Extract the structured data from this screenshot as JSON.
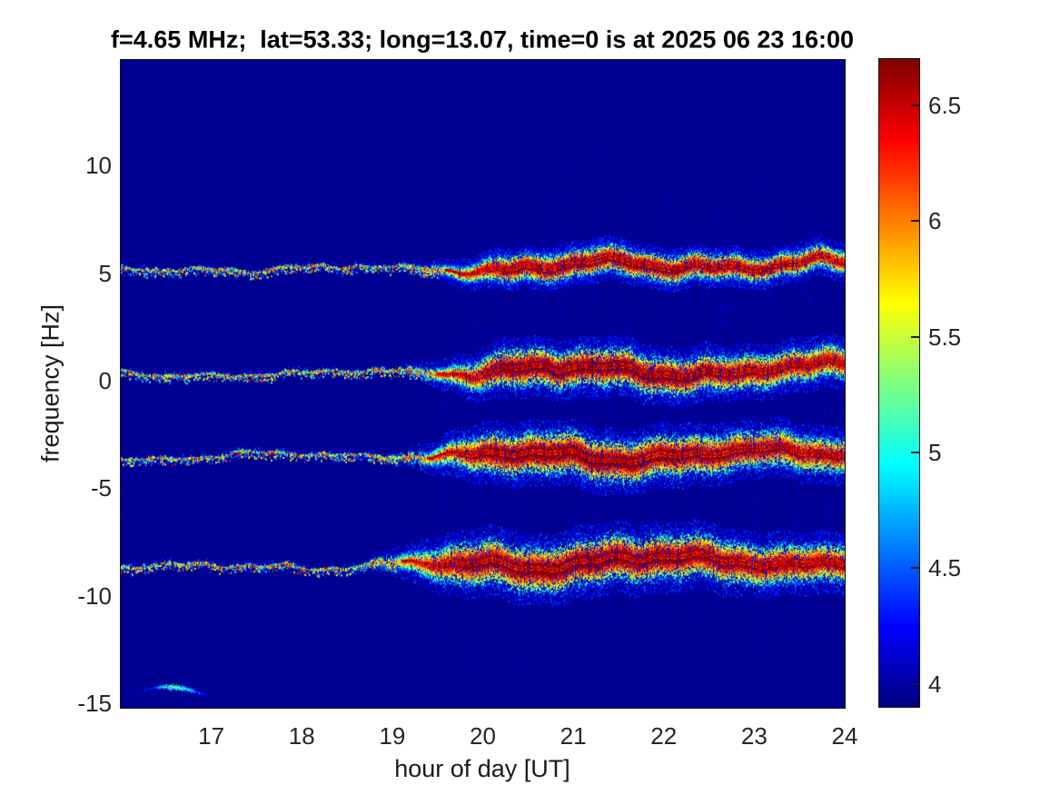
{
  "title": "f=4.65 MHz;  lat=53.33; long=13.07, time=0 is at 2025 06 23 16:00",
  "axes": {
    "xlabel": "hour of day [UT]",
    "ylabel": "frequency [Hz]",
    "xtick_labels": [
      "17",
      "18",
      "19",
      "20",
      "21",
      "22",
      "23",
      "24"
    ],
    "ytick_labels": [
      "10",
      "5",
      "0",
      "-5",
      "-10",
      "-15"
    ],
    "tick_color": "#262626"
  },
  "colorbar": {
    "tick_labels": [
      "6.5",
      "6",
      "5.5",
      "5",
      "4.5",
      "4"
    ],
    "tick_values": [
      6.5,
      6.0,
      5.5,
      5.0,
      4.5,
      4.0
    ],
    "range": [
      3.9,
      6.7
    ],
    "colormap": "jet"
  },
  "chart_data": {
    "type": "heatmap",
    "subtype": "doppler-spectrogram",
    "title": "f=4.65 MHz;  lat=53.33; long=13.07, time=0 is at 2025 06 23 16:00",
    "xlabel": "hour of day [UT]",
    "ylabel": "frequency [Hz]",
    "xlim": [
      16,
      24
    ],
    "ylim": [
      -15.2,
      14.9
    ],
    "xticks": [
      17,
      18,
      19,
      20,
      21,
      22,
      23,
      24
    ],
    "yticks": [
      10,
      5,
      0,
      -5,
      -10,
      -15
    ],
    "color_axis": [
      3.9,
      6.7
    ],
    "colormap": "jet",
    "grid": false,
    "background_value": 3.95,
    "series": [
      {
        "name": "spectral-line-1",
        "freq_at_16h": 5.2,
        "freq_at_24h": 5.5,
        "intense_from_hour": 19.5,
        "halo_sigma_hz_peak": 0.3,
        "peak_value": 6.7
      },
      {
        "name": "spectral-line-2",
        "freq_at_16h": 0.35,
        "freq_at_24h": 0.55,
        "intense_from_hour": 19.4,
        "halo_sigma_hz_peak": 0.42,
        "peak_value": 6.7
      },
      {
        "name": "spectral-line-3",
        "freq_at_16h": -3.6,
        "freq_at_24h": -3.3,
        "intense_from_hour": 19.3,
        "halo_sigma_hz_peak": 0.46,
        "peak_value": 6.7
      },
      {
        "name": "spectral-line-4",
        "freq_at_16h": -8.65,
        "freq_at_24h": -8.35,
        "intense_from_hour": 19.0,
        "halo_sigma_hz_peak": 0.5,
        "peak_value": 6.7
      }
    ],
    "artifact": {
      "name": "weak-low-trace",
      "hour_start": 16.05,
      "hour_end": 16.95,
      "freq_start": -14.8,
      "freq_peak": -14.2,
      "freq_end": -14.55,
      "max_value": 5.6
    }
  }
}
